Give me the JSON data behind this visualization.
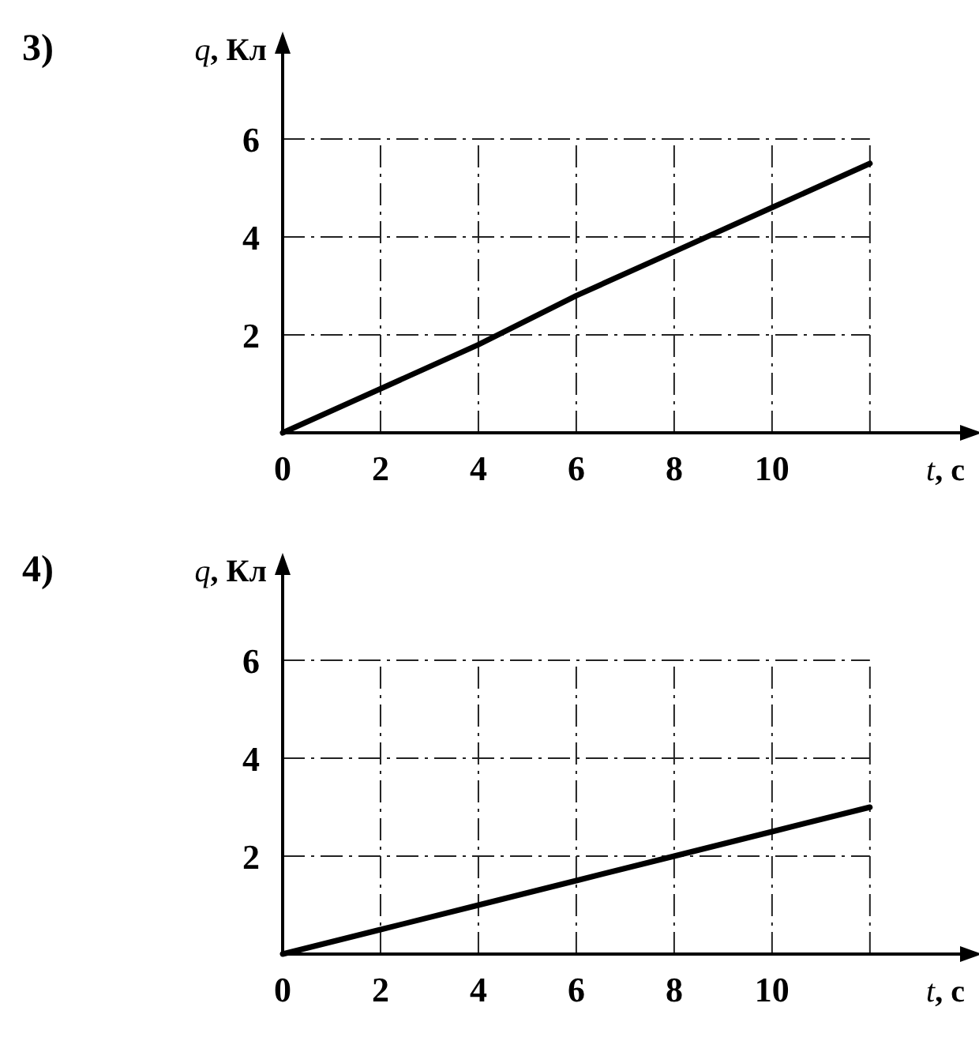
{
  "chart_data": [
    {
      "type": "line",
      "title": "3)",
      "xlabel": "t, с",
      "ylabel": "q, Кл",
      "series": [
        {
          "color": "#000000",
          "x": [
            0,
            2,
            4,
            6,
            8,
            10,
            12
          ],
          "values": [
            0,
            0.9,
            1.8,
            2.8,
            3.7,
            4.6,
            5.5
          ]
        }
      ],
      "xlim": [
        0,
        14.1
      ],
      "ylim": [
        0,
        8
      ],
      "xticks": [
        0,
        2,
        4,
        6,
        8,
        10,
        {
          "value": 12,
          "label": null
        }
      ],
      "yticks": [
        {
          "value": 0,
          "label": null
        },
        2,
        4,
        6
      ],
      "grid": true,
      "marker": "none",
      "line_style": "solid"
    },
    {
      "type": "line",
      "title": "4)",
      "xlabel": "t, с",
      "ylabel": "q, Кл",
      "series": [
        {
          "color": "#000000",
          "x": [
            0,
            2,
            4,
            6,
            8,
            10,
            12
          ],
          "values": [
            0,
            0.5,
            1,
            1.5,
            2,
            2.5,
            3
          ]
        }
      ],
      "xlim": [
        0,
        14.1
      ],
      "ylim": [
        0,
        8
      ],
      "xticks": [
        0,
        2,
        4,
        6,
        8,
        10,
        {
          "value": 12,
          "label": null
        }
      ],
      "yticks": [
        {
          "value": 0,
          "label": null
        },
        2,
        4,
        6
      ],
      "grid": true,
      "marker": "none",
      "line_style": "solid"
    }
  ]
}
